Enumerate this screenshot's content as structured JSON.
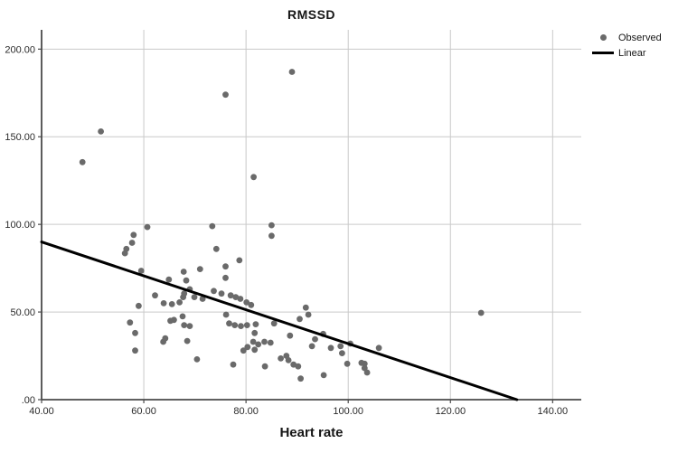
{
  "chart_data": {
    "type": "scatter",
    "title": "RMSSD",
    "xlabel": "Heart rate",
    "ylabel": "",
    "xlim": [
      40,
      145.6
    ],
    "ylim": [
      0,
      211
    ],
    "grid": true,
    "x_ticks": [
      40,
      60,
      80,
      100,
      120,
      140
    ],
    "x_tick_labels": [
      "40.00",
      "60.00",
      "80.00",
      "100.00",
      "120.00",
      "140.00"
    ],
    "y_ticks": [
      0,
      50,
      100,
      150,
      200
    ],
    "y_tick_labels": [
      ".00",
      "50.00",
      "100.00",
      "150.00",
      "200.00"
    ],
    "legend": [
      {
        "label": "Observed",
        "marker": "dot",
        "color": "#6a6a6a"
      },
      {
        "label": "Linear",
        "marker": "line",
        "color": "#000000"
      }
    ],
    "legend_position": "top-right-outside",
    "colors": {
      "dot": "#6a6a6a",
      "line": "#000000",
      "grid": "#c9c9c9",
      "axis": "#4a4a4a",
      "text": "#2b2b2b"
    },
    "regression_line": {
      "x1": 40,
      "y1": 90,
      "x2": 133,
      "y2": 0
    },
    "points": [
      [
        48,
        135.5
      ],
      [
        51.6,
        153
      ],
      [
        76,
        174
      ],
      [
        89,
        187
      ],
      [
        81.5,
        127
      ],
      [
        60.7,
        98.5
      ],
      [
        73.4,
        99
      ],
      [
        85,
        99.5
      ],
      [
        85,
        93.5
      ],
      [
        58,
        94
      ],
      [
        57.7,
        89.5
      ],
      [
        56.6,
        86
      ],
      [
        56.3,
        83.5
      ],
      [
        74.2,
        86
      ],
      [
        78.7,
        79.5
      ],
      [
        59.5,
        73.5
      ],
      [
        71,
        74.5
      ],
      [
        67.8,
        73
      ],
      [
        64.9,
        68.5
      ],
      [
        68.3,
        68
      ],
      [
        76,
        76
      ],
      [
        76,
        69.5
      ],
      [
        69,
        63
      ],
      [
        73.7,
        62
      ],
      [
        75.2,
        60.5
      ],
      [
        67.9,
        60.5
      ],
      [
        62.2,
        59.5
      ],
      [
        67.7,
        58.5
      ],
      [
        69.9,
        58.5
      ],
      [
        71.5,
        57.5
      ],
      [
        77,
        59.5
      ],
      [
        78,
        58.5
      ],
      [
        78.9,
        57.5
      ],
      [
        80.1,
        55.5
      ],
      [
        63.9,
        55
      ],
      [
        65.5,
        54.5
      ],
      [
        67,
        55.5
      ],
      [
        59,
        53.5
      ],
      [
        81,
        54
      ],
      [
        91.7,
        52.5
      ],
      [
        92.2,
        48.5
      ],
      [
        57.3,
        44
      ],
      [
        65.2,
        45
      ],
      [
        65.9,
        45.5
      ],
      [
        67.6,
        47.5
      ],
      [
        67.9,
        42.5
      ],
      [
        69,
        42
      ],
      [
        76.1,
        48.5
      ],
      [
        76.7,
        43.5
      ],
      [
        77.8,
        42.5
      ],
      [
        79,
        42
      ],
      [
        80.2,
        42.5
      ],
      [
        81.9,
        43
      ],
      [
        85.5,
        43.5
      ],
      [
        90.5,
        46
      ],
      [
        126,
        49.5
      ],
      [
        58.3,
        38
      ],
      [
        81.7,
        38
      ],
      [
        88.6,
        36.5
      ],
      [
        95.1,
        37.5
      ],
      [
        93.5,
        34.5
      ],
      [
        64.2,
        35
      ],
      [
        63.8,
        33
      ],
      [
        68.5,
        33.5
      ],
      [
        80.3,
        30
      ],
      [
        81.4,
        33
      ],
      [
        82.4,
        31.5
      ],
      [
        83.6,
        33
      ],
      [
        84.8,
        32.5
      ],
      [
        81.7,
        28.5
      ],
      [
        92.9,
        30.5
      ],
      [
        96.6,
        29.5
      ],
      [
        98.5,
        30.5
      ],
      [
        98.8,
        26.5
      ],
      [
        100.4,
        32
      ],
      [
        106,
        29.5
      ],
      [
        58.3,
        28
      ],
      [
        79.5,
        28
      ],
      [
        70.4,
        23
      ],
      [
        86.8,
        23.5
      ],
      [
        88.3,
        22.5
      ],
      [
        87.9,
        25
      ],
      [
        89.3,
        20
      ],
      [
        90.2,
        19
      ],
      [
        83.7,
        19
      ],
      [
        77.5,
        20
      ],
      [
        99.8,
        20.5
      ],
      [
        102.6,
        21
      ],
      [
        103.2,
        20.5
      ],
      [
        103.2,
        18
      ],
      [
        103.7,
        15.5
      ],
      [
        95.2,
        14
      ],
      [
        90.7,
        12
      ]
    ]
  }
}
